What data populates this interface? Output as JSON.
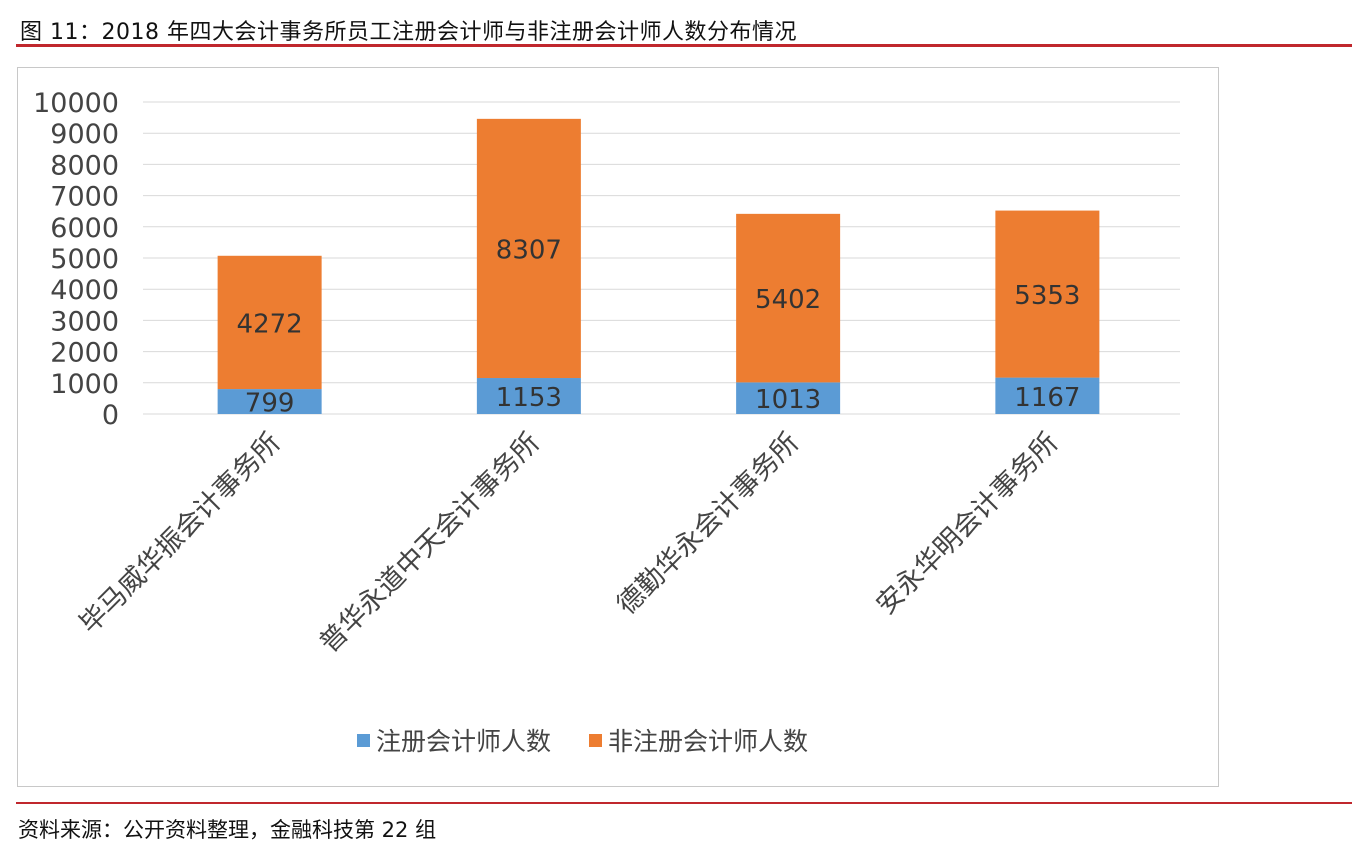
{
  "figure": {
    "title": "图 11：2018 年四大会计事务所员工注册会计师与非注册会计师人数分布情况",
    "source": "资料来源：公开资料整理，金融科技第 22 组"
  },
  "colors": {
    "registered": "#5b9bd5",
    "non_registered": "#ed7d31",
    "accent_rule": "#c0272d",
    "gridline": "#d9d9d9"
  },
  "legend": {
    "items": [
      {
        "label": "注册会计师人数",
        "color": "#5b9bd5"
      },
      {
        "label": "非注册会计师人数",
        "color": "#ed7d31"
      }
    ]
  },
  "chart_data": {
    "type": "bar",
    "stacked": true,
    "title": "图 11：2018 年四大会计事务所员工注册会计师与非注册会计师人数分布情况",
    "xlabel": "",
    "ylabel": "",
    "ylim": [
      0,
      10000
    ],
    "yticks": [
      0,
      1000,
      2000,
      3000,
      4000,
      5000,
      6000,
      7000,
      8000,
      9000,
      10000
    ],
    "grid": true,
    "legend_position": "bottom",
    "categories": [
      "毕马威华振会计事务所",
      "普华永道中天会计事务所",
      "德勤华永会计事务所",
      "安永华明会计事务所"
    ],
    "series": [
      {
        "name": "注册会计师人数",
        "color": "#5b9bd5",
        "values": [
          799,
          1153,
          1013,
          1167
        ]
      },
      {
        "name": "非注册会计师人数",
        "color": "#ed7d31",
        "values": [
          4272,
          8307,
          5402,
          5353
        ]
      }
    ]
  }
}
